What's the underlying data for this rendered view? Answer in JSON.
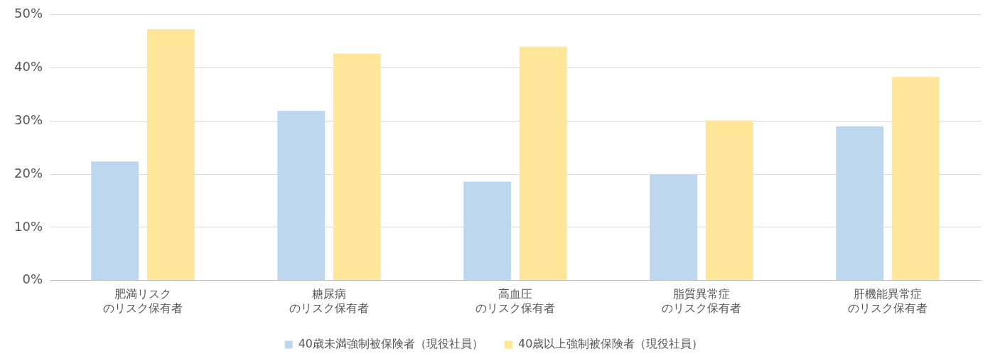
{
  "chart_data": {
    "type": "bar",
    "categories": [
      "肥満リスクのリスク保有者",
      "糖尿病のリスク保有者",
      "高血圧のリスク保有者",
      "脂質異常症のリスク保有者",
      "肝機能異常症のリスク保有者"
    ],
    "series": [
      {
        "name": "40歳未満強制被保険者（現役社員）",
        "color": "#bdd7ee",
        "values": [
          22.4,
          31.9,
          18.6,
          19.9,
          29.0
        ]
      },
      {
        "name": "40歳以上強制被保険者（現役社員）",
        "color": "#ffe699",
        "values": [
          47.3,
          42.7,
          44.0,
          30.1,
          38.3
        ]
      }
    ],
    "ylim": [
      0,
      50
    ],
    "yticks": [
      {
        "value": 0,
        "label": "0%"
      },
      {
        "value": 10,
        "label": "10%"
      },
      {
        "value": 20,
        "label": "20%"
      },
      {
        "value": 30,
        "label": "30%"
      },
      {
        "value": 40,
        "label": "40%"
      },
      {
        "value": 50,
        "label": "50%"
      }
    ],
    "grid": "y",
    "legend": "bottom"
  }
}
